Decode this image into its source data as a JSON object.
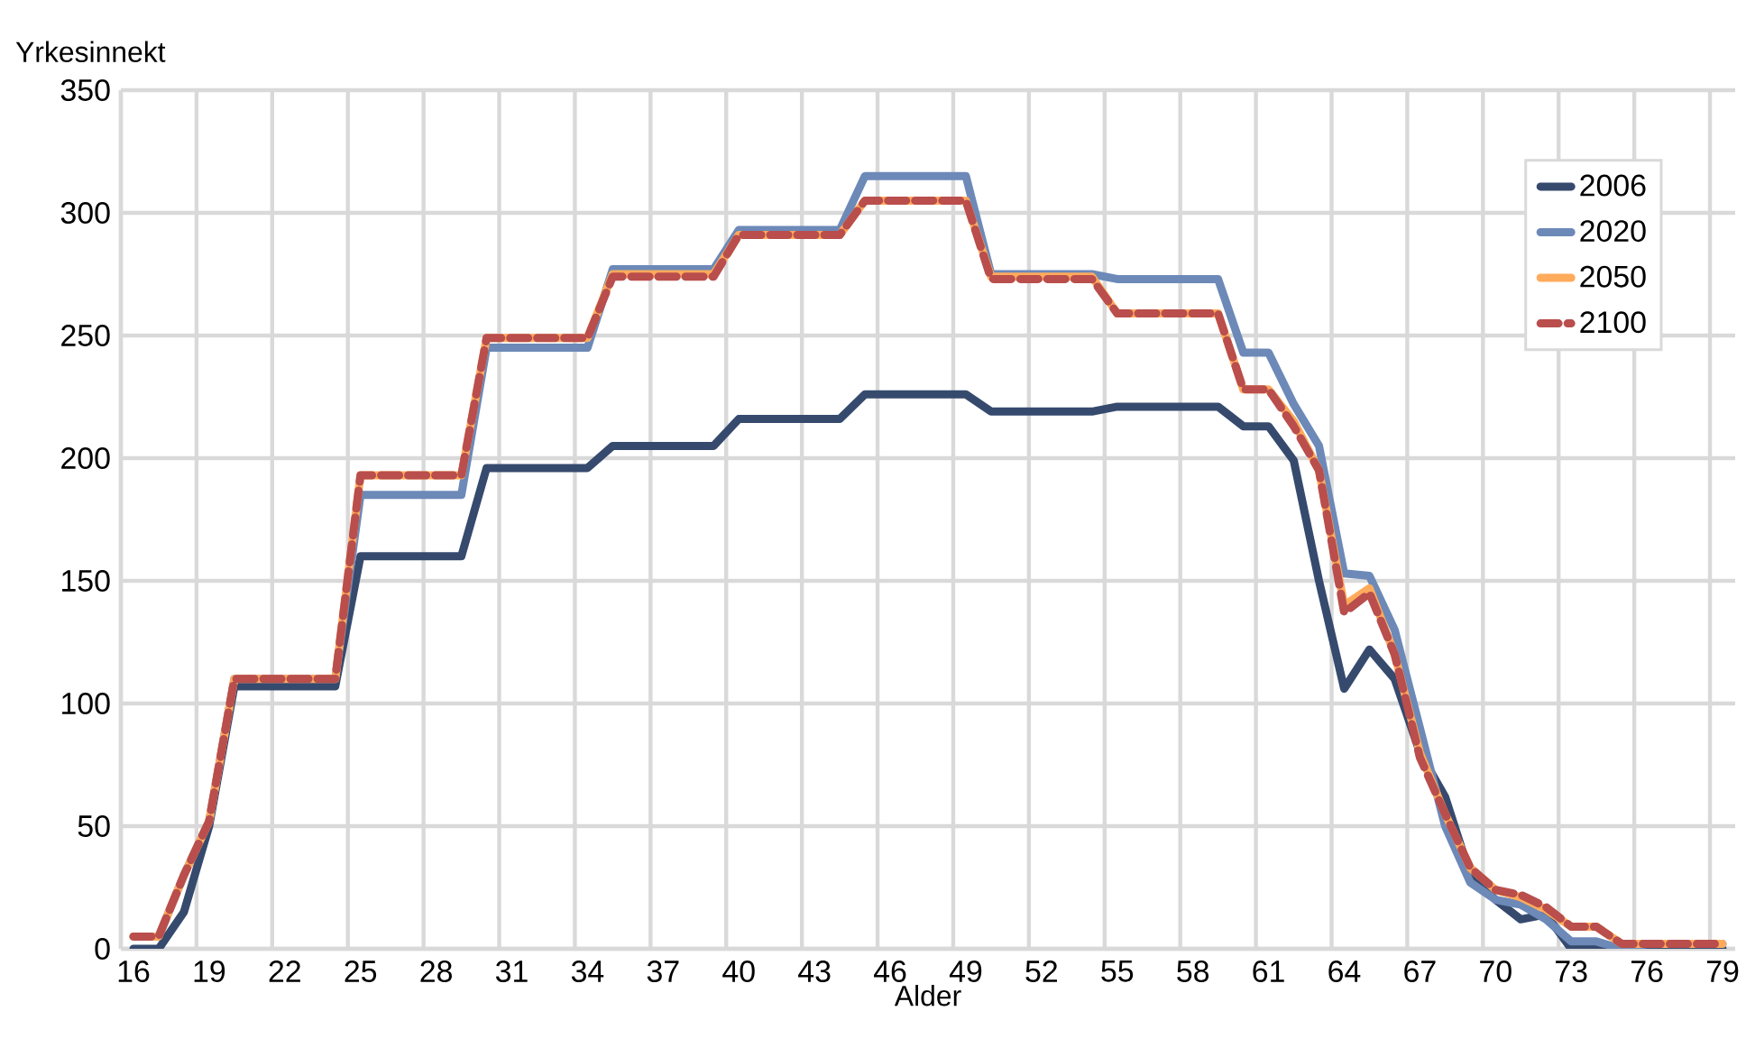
{
  "chart_data": {
    "type": "line",
    "xlabel": "Alder",
    "ylabel": "Yrkesinnekt",
    "categories": [
      "16",
      null,
      null,
      "19",
      null,
      null,
      "22",
      null,
      null,
      "25",
      null,
      null,
      "28",
      null,
      null,
      "31",
      null,
      null,
      "34",
      null,
      null,
      "37",
      null,
      null,
      "40",
      null,
      null,
      "43",
      null,
      null,
      "46",
      null,
      null,
      "49",
      null,
      null,
      "52",
      null,
      null,
      "55",
      null,
      null,
      "58",
      null,
      null,
      "61",
      null,
      null,
      "64",
      null,
      null,
      "67",
      null,
      null,
      "70",
      null,
      null,
      "73",
      null,
      null,
      "76",
      null,
      null,
      "79"
    ],
    "ylim": [
      0,
      350
    ],
    "yticks": [
      0,
      50,
      100,
      150,
      200,
      250,
      300,
      350
    ],
    "grid": true,
    "legend": "top right",
    "marker": "none",
    "series": [
      {
        "name": "2006",
        "color": "#364a6e",
        "line_style": "solid",
        "values": [
          0,
          0,
          15,
          50,
          107,
          107,
          107,
          107,
          107,
          160,
          160,
          160,
          160,
          160,
          196,
          196,
          196,
          196,
          196,
          205,
          205,
          205,
          205,
          205,
          216,
          216,
          216,
          216,
          216,
          226,
          226,
          226,
          226,
          226,
          219,
          219,
          219,
          219,
          219,
          221,
          221,
          221,
          221,
          221,
          213,
          213,
          199,
          150,
          106,
          122,
          110,
          80,
          62,
          30,
          20,
          12,
          14,
          0,
          0,
          0,
          0,
          0,
          0,
          0
        ]
      },
      {
        "name": "2020",
        "color": "#6c89b8",
        "line_style": "solid",
        "values": [
          5,
          5,
          30,
          52,
          110,
          110,
          110,
          110,
          110,
          185,
          185,
          185,
          185,
          185,
          245,
          245,
          245,
          245,
          245,
          277,
          277,
          277,
          277,
          277,
          293,
          293,
          293,
          293,
          293,
          315,
          315,
          315,
          315,
          315,
          275,
          275,
          275,
          275,
          275,
          273,
          273,
          273,
          273,
          273,
          243,
          243,
          222,
          205,
          153,
          152,
          130,
          90,
          50,
          27,
          20,
          18,
          12,
          3,
          3,
          0,
          2,
          null,
          null,
          2
        ]
      },
      {
        "name": "2050",
        "color": "#ffab5c",
        "line_style": "solid",
        "values": [
          5,
          5,
          30,
          52,
          110,
          110,
          110,
          110,
          110,
          193,
          193,
          193,
          193,
          193,
          249,
          249,
          249,
          249,
          249,
          275,
          275,
          275,
          275,
          275,
          291,
          291,
          291,
          291,
          291,
          305,
          305,
          305,
          305,
          305,
          274,
          274,
          274,
          274,
          274,
          259,
          259,
          259,
          259,
          259,
          228,
          228,
          215,
          195,
          140,
          147,
          120,
          80,
          55,
          33,
          24,
          21,
          16,
          9,
          9,
          2,
          2,
          2,
          2,
          2
        ]
      },
      {
        "name": "2100",
        "color": "#b94e4c",
        "line_style": "dashed",
        "values": [
          5,
          5,
          30,
          52,
          110,
          110,
          110,
          110,
          110,
          193,
          193,
          193,
          193,
          193,
          249,
          249,
          249,
          249,
          249,
          274,
          274,
          274,
          274,
          274,
          291,
          291,
          291,
          291,
          291,
          305,
          305,
          305,
          305,
          305,
          273,
          273,
          273,
          273,
          273,
          259,
          259,
          259,
          259,
          259,
          228,
          228,
          213,
          195,
          137,
          145,
          120,
          78,
          55,
          33,
          24,
          22,
          17,
          9,
          9,
          2,
          2,
          2,
          2,
          2
        ]
      }
    ]
  }
}
